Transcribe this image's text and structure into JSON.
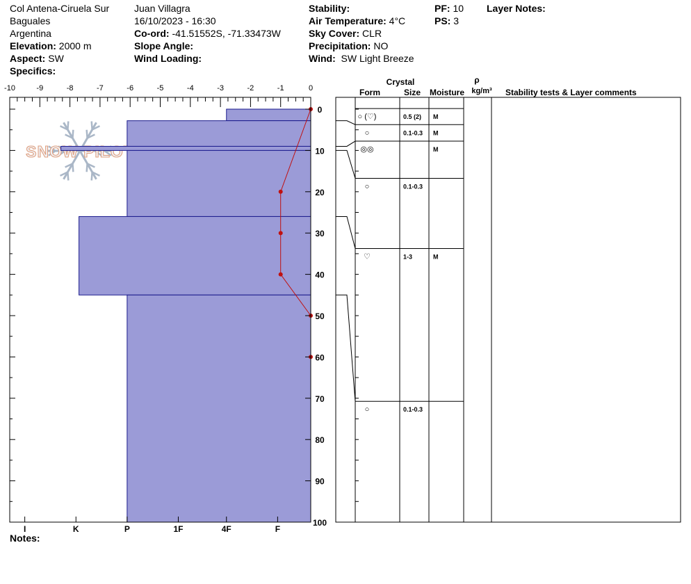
{
  "header": {
    "location": "Col Antena-Ciruela Sur",
    "region": "Baguales",
    "country": "Argentina",
    "elevation_label": "Elevation:",
    "elevation_value": "2000 m",
    "aspect_label": "Aspect:",
    "aspect_value": "SW",
    "specifics_label": "Specifics:",
    "observer": "Juan Villagra",
    "datetime": "16/10/2023 - 16:30",
    "coord_label": "Co-ord:",
    "coord_value": "-41.51552S, -71.33473W",
    "slope_label": "Slope Angle:",
    "wind_loading_label": "Wind Loading:",
    "stability_label": "Stability:",
    "air_temp_label": "Air Temperature:",
    "air_temp_value": "4°C",
    "sky_label": "Sky Cover:",
    "sky_value": "CLR",
    "precip_label": "Precipitation:",
    "precip_value": "NO",
    "wind_label": "Wind:",
    "wind_value": "SW Light Breeze",
    "pf_label": "PF:",
    "pf_value": "10",
    "ps_label": "PS:",
    "ps_value": "3",
    "layer_notes_label": "Layer Notes:"
  },
  "notes_label": "Notes:",
  "watermark": "SNOW PILOT",
  "colors": {
    "layer_fill": "#9b9bd7",
    "layer_stroke": "#1a1a8c",
    "temp_line": "#c01010"
  },
  "chart_data": {
    "type": "bar",
    "temperature_axis": {
      "ticks": [
        "-10",
        "-9",
        "-8",
        "-7",
        "-6",
        "-5",
        "-4",
        "-3",
        "-2",
        "-1",
        "0"
      ],
      "min": -10,
      "max": 0
    },
    "depth_axis": {
      "ticks": [
        "0",
        "10",
        "20",
        "30",
        "40",
        "50",
        "60",
        "70",
        "80",
        "90",
        "100"
      ],
      "min": 0,
      "max": 100
    },
    "hardness_axis": {
      "ticks": [
        "I",
        "K",
        "P",
        "1F",
        "4F",
        "F"
      ]
    },
    "hardness_layers": [
      {
        "top": 0,
        "bottom": 2.8,
        "hardness_width": 2.8
      },
      {
        "top": 2.8,
        "bottom": 9,
        "hardness_width": 6.1
      },
      {
        "top": 9,
        "bottom": 10,
        "hardness_width": 8.3
      },
      {
        "top": 10,
        "bottom": 26,
        "hardness_width": 6.1
      },
      {
        "top": 26,
        "bottom": 45,
        "hardness_width": 7.7
      },
      {
        "top": 45,
        "bottom": 100,
        "hardness_width": 6.1
      }
    ],
    "temperature_profile": [
      {
        "depth": 0,
        "temp": 0
      },
      {
        "depth": 20,
        "temp": -1
      },
      {
        "depth": 30,
        "temp": -1
      },
      {
        "depth": 40,
        "temp": -1
      },
      {
        "depth": 50,
        "temp": 0
      },
      {
        "depth": 60,
        "temp": 0
      }
    ],
    "columns": {
      "crystal": "Crystal",
      "form": "Form",
      "size": "Size",
      "moisture": "Moisture",
      "density_symbol": "ρ",
      "density_unit": "kg/m³",
      "comments": "Stability tests & Layer comments"
    },
    "layer_rows": [
      {
        "top": 0,
        "bottom": 2.8,
        "mid": 1.7,
        "form": "○ (♡)",
        "size": "0.5 (2)",
        "moisture": "M"
      },
      {
        "top": 2.8,
        "bottom": 9,
        "mid": 5.6,
        "form": "○",
        "size": "0.1-0.3",
        "moisture": "M"
      },
      {
        "top": 9,
        "bottom": 10,
        "mid": 9.6,
        "form": "◎◎",
        "size": "",
        "moisture": "M"
      },
      {
        "top": 10,
        "bottom": 26,
        "mid": 18.6,
        "form": "○",
        "size": "0.1-0.3",
        "moisture": ""
      },
      {
        "top": 26,
        "bottom": 45,
        "mid": 35.6,
        "form": "♡",
        "size": "1-3",
        "moisture": "M"
      },
      {
        "top": 45,
        "bottom": 100,
        "mid": 72.6,
        "form": "○",
        "size": "0.1-0.3",
        "moisture": ""
      }
    ]
  }
}
